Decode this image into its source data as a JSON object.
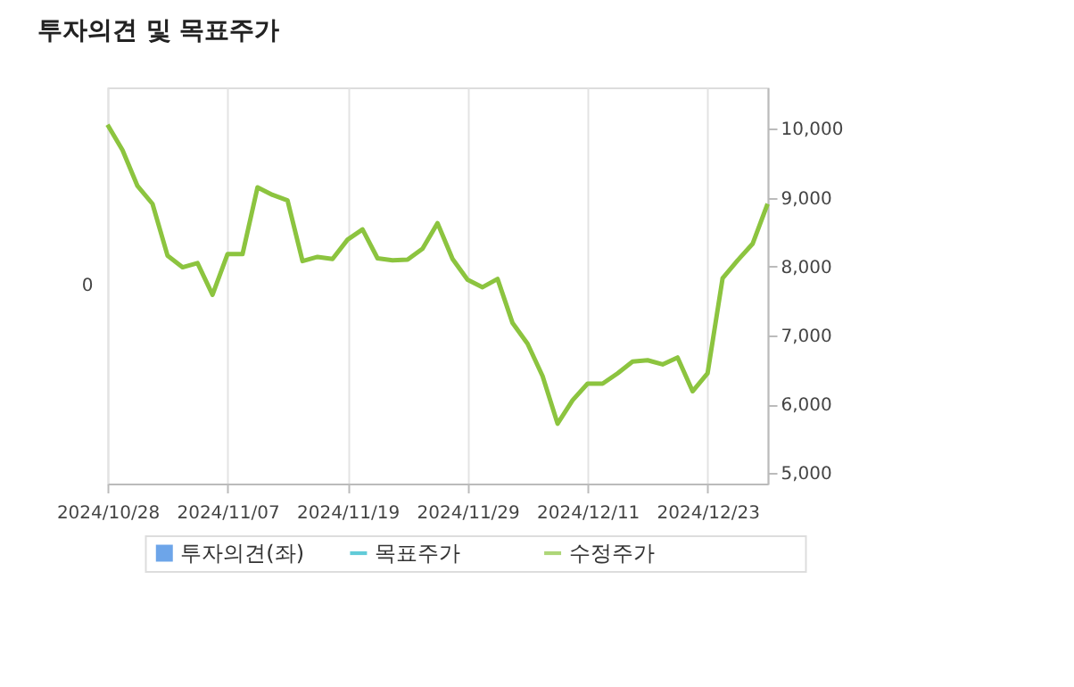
{
  "chart_data": {
    "type": "line",
    "title": "투자의견 및 목표주가",
    "categories": [
      "2024/10/28",
      null,
      null,
      null,
      null,
      null,
      null,
      null,
      "2024/11/07",
      null,
      null,
      null,
      null,
      null,
      null,
      null,
      "2024/11/19",
      null,
      null,
      null,
      null,
      null,
      null,
      null,
      "2024/11/29",
      null,
      null,
      null,
      null,
      null,
      null,
      null,
      "2024/12/11",
      null,
      null,
      null,
      null,
      null,
      null,
      null,
      "2024/12/23",
      null,
      null,
      null,
      null
    ],
    "series": [
      {
        "name": "투자의견(좌)",
        "type": "bar",
        "color": "#2f7fe0",
        "values": [
          null,
          null,
          null,
          null,
          null,
          null,
          null,
          null,
          null,
          null,
          null,
          null,
          null,
          null,
          null,
          null,
          null,
          null,
          null,
          null,
          null,
          null,
          null,
          null,
          null,
          null,
          null,
          null,
          null,
          null,
          null,
          null,
          null,
          null,
          null,
          null,
          null,
          null,
          null,
          null,
          null,
          null,
          null,
          null,
          null
        ]
      },
      {
        "name": "목표주가",
        "axis": "y2",
        "color": "#1fb5c8",
        "values": [
          null,
          null,
          null,
          null,
          null,
          null,
          null,
          null,
          null,
          null,
          null,
          null,
          null,
          null,
          null,
          null,
          null,
          null,
          null,
          null,
          null,
          null,
          null,
          null,
          null,
          null,
          null,
          null,
          null,
          null,
          null,
          null,
          null,
          null,
          null,
          null,
          null,
          null,
          null,
          null,
          null,
          null,
          null,
          null,
          null
        ]
      },
      {
        "name": "수정주가",
        "axis": "y2",
        "color": "#8cc43f",
        "values": [
          10060,
          9690,
          9170,
          8910,
          8160,
          7990,
          8050,
          7590,
          8180,
          8180,
          9150,
          9040,
          8960,
          8080,
          8140,
          8110,
          8390,
          8540,
          8120,
          8090,
          8100,
          8260,
          8630,
          8110,
          7810,
          7700,
          7820,
          7180,
          6880,
          6410,
          5720,
          6060,
          6300,
          6300,
          6450,
          6620,
          6640,
          6580,
          6680,
          6190,
          6450,
          7830,
          8090,
          8330,
          8910
        ]
      }
    ],
    "annotations": [
      "0"
    ],
    "y2lim": [
      4850,
      10600
    ],
    "y2ticks": [
      {
        "value": 5000,
        "label": "5,000"
      },
      {
        "value": 6000,
        "label": "6,000"
      },
      {
        "value": 7000,
        "label": "7,000"
      },
      {
        "value": 8000,
        "label": "8,000"
      },
      {
        "value": 9000,
        "label": "9,000"
      },
      {
        "value": 10000,
        "label": "10,000"
      }
    ],
    "grid": "x",
    "legend": "bottom",
    "marker": "none",
    "line_style": "solid"
  }
}
